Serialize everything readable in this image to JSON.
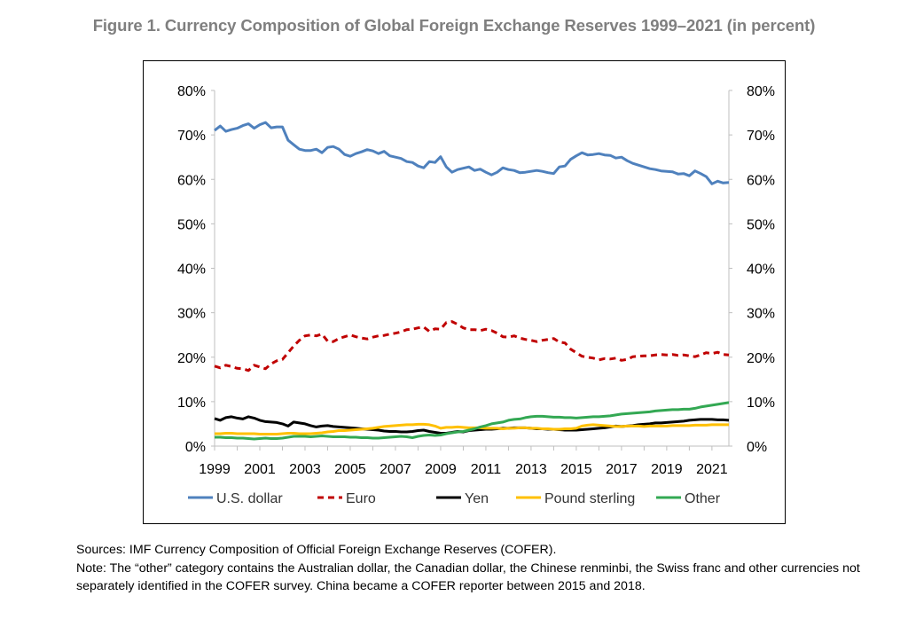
{
  "figure_title": "Figure 1. Currency Composition of Global Foreign Exchange Reserves 1999–2021 (in percent)",
  "sources": "Sources: IMF Currency Composition of Official Foreign Exchange Reserves (COFER).",
  "note": "Note: The “other” category contains the Australian dollar, the Canadian dollar, the Chinese renminbi, the Swiss franc and other currencies not separately identified in the COFER survey. China became a COFER reporter between 2015 and 2018.",
  "chart_data": {
    "type": "line",
    "title": "Figure 1. Currency Composition of Global Foreign Exchange Reserves 1999–2021 (in percent)",
    "x_start": 1999,
    "x_end": 2021.75,
    "x_ticks": [
      1999,
      2001,
      2003,
      2005,
      2007,
      2009,
      2011,
      2013,
      2015,
      2017,
      2019,
      2021
    ],
    "y_ticks": [
      0,
      10,
      20,
      30,
      40,
      50,
      60,
      70,
      80
    ],
    "ylim": [
      0,
      80
    ],
    "y_tick_format": "%",
    "dual_y_axis": true,
    "grid": false,
    "legend_position": "bottom",
    "series": [
      {
        "name": "U.S. dollar",
        "color": "#4f81bd",
        "dash": "solid",
        "x": [
          1999.0,
          1999.25,
          1999.5,
          1999.75,
          2000.0,
          2000.25,
          2000.5,
          2000.75,
          2001.0,
          2001.25,
          2001.5,
          2001.75,
          2002.0,
          2002.25,
          2002.5,
          2002.75,
          2003.0,
          2003.25,
          2003.5,
          2003.75,
          2004.0,
          2004.25,
          2004.5,
          2004.75,
          2005.0,
          2005.25,
          2005.5,
          2005.75,
          2006.0,
          2006.25,
          2006.5,
          2006.75,
          2007.0,
          2007.25,
          2007.5,
          2007.75,
          2008.0,
          2008.25,
          2008.5,
          2008.75,
          2009.0,
          2009.25,
          2009.5,
          2009.75,
          2010.0,
          2010.25,
          2010.5,
          2010.75,
          2011.0,
          2011.25,
          2011.5,
          2011.75,
          2012.0,
          2012.25,
          2012.5,
          2012.75,
          2013.0,
          2013.25,
          2013.5,
          2013.75,
          2014.0,
          2014.25,
          2014.5,
          2014.75,
          2015.0,
          2015.25,
          2015.5,
          2015.75,
          2016.0,
          2016.25,
          2016.5,
          2016.75,
          2017.0,
          2017.25,
          2017.5,
          2017.75,
          2018.0,
          2018.25,
          2018.5,
          2018.75,
          2019.0,
          2019.25,
          2019.5,
          2019.75,
          2020.0,
          2020.25,
          2020.5,
          2020.75,
          2021.0,
          2021.25,
          2021.5,
          2021.75
        ],
        "values": [
          71.0,
          72.0,
          70.8,
          71.2,
          71.5,
          72.1,
          72.5,
          71.5,
          72.3,
          72.8,
          71.6,
          71.8,
          71.8,
          68.8,
          67.8,
          66.8,
          66.5,
          66.5,
          66.8,
          66.0,
          67.2,
          67.4,
          66.8,
          65.6,
          65.2,
          65.8,
          66.2,
          66.7,
          66.4,
          65.8,
          66.3,
          65.3,
          65.0,
          64.7,
          64.0,
          63.8,
          63.0,
          62.6,
          64.0,
          63.8,
          65.1,
          62.8,
          61.6,
          62.2,
          62.5,
          62.8,
          62.0,
          62.3,
          61.6,
          61.0,
          61.6,
          62.6,
          62.2,
          62.0,
          61.5,
          61.6,
          61.8,
          62.0,
          61.8,
          61.5,
          61.3,
          62.8,
          63.0,
          64.5,
          65.3,
          66.0,
          65.5,
          65.6,
          65.8,
          65.5,
          65.4,
          64.8,
          65.0,
          64.2,
          63.6,
          63.2,
          62.8,
          62.4,
          62.2,
          61.9,
          61.8,
          61.7,
          61.2,
          61.3,
          60.8,
          61.9,
          61.3,
          60.6,
          59.0,
          59.6,
          59.2,
          59.3
        ]
      },
      {
        "name": "Euro",
        "color": "#c00000",
        "dash": "dashed",
        "x": [
          1999.0,
          1999.25,
          1999.5,
          1999.75,
          2000.0,
          2000.25,
          2000.5,
          2000.75,
          2001.0,
          2001.25,
          2001.5,
          2001.75,
          2002.0,
          2002.25,
          2002.5,
          2002.75,
          2003.0,
          2003.25,
          2003.5,
          2003.75,
          2004.0,
          2004.25,
          2004.5,
          2004.75,
          2005.0,
          2005.25,
          2005.5,
          2005.75,
          2006.0,
          2006.25,
          2006.5,
          2006.75,
          2007.0,
          2007.25,
          2007.5,
          2007.75,
          2008.0,
          2008.25,
          2008.5,
          2008.75,
          2009.0,
          2009.25,
          2009.5,
          2009.75,
          2010.0,
          2010.25,
          2010.5,
          2010.75,
          2011.0,
          2011.25,
          2011.5,
          2011.75,
          2012.0,
          2012.25,
          2012.5,
          2012.75,
          2013.0,
          2013.25,
          2013.5,
          2013.75,
          2014.0,
          2014.25,
          2014.5,
          2014.75,
          2015.0,
          2015.25,
          2015.5,
          2015.75,
          2016.0,
          2016.25,
          2016.5,
          2016.75,
          2017.0,
          2017.25,
          2017.5,
          2017.75,
          2018.0,
          2018.25,
          2018.5,
          2018.75,
          2019.0,
          2019.25,
          2019.5,
          2019.75,
          2020.0,
          2020.25,
          2020.5,
          2020.75,
          2021.0,
          2021.25,
          2021.5,
          2021.75
        ],
        "values": [
          18.0,
          17.6,
          18.2,
          17.9,
          17.5,
          17.4,
          17.0,
          18.2,
          17.8,
          17.4,
          18.5,
          19.2,
          19.5,
          21.0,
          22.5,
          23.8,
          24.8,
          25.0,
          24.8,
          25.2,
          23.6,
          23.5,
          24.2,
          24.6,
          25.0,
          24.6,
          24.3,
          24.1,
          24.5,
          24.8,
          24.9,
          25.2,
          25.4,
          25.7,
          26.2,
          26.3,
          26.6,
          26.8,
          25.8,
          26.4,
          26.3,
          27.8,
          28.0,
          27.4,
          26.6,
          26.2,
          26.2,
          26.0,
          26.3,
          26.0,
          25.4,
          24.6,
          24.5,
          24.8,
          24.3,
          24.0,
          23.8,
          23.5,
          23.8,
          24.0,
          24.2,
          23.4,
          23.2,
          21.8,
          21.0,
          20.2,
          20.0,
          19.8,
          19.4,
          19.7,
          19.6,
          19.8,
          19.3,
          19.5,
          20.1,
          20.2,
          20.3,
          20.3,
          20.5,
          20.6,
          20.5,
          20.6,
          20.4,
          20.5,
          20.3,
          20.1,
          20.5,
          21.0,
          20.8,
          21.1,
          20.6,
          20.5
        ]
      },
      {
        "name": "Yen",
        "color": "#000000",
        "dash": "solid",
        "x": [
          1999.0,
          1999.25,
          1999.5,
          1999.75,
          2000.0,
          2000.25,
          2000.5,
          2000.75,
          2001.0,
          2001.25,
          2001.5,
          2001.75,
          2002.0,
          2002.25,
          2002.5,
          2002.75,
          2003.0,
          2003.25,
          2003.5,
          2003.75,
          2004.0,
          2004.25,
          2004.5,
          2004.75,
          2005.0,
          2005.25,
          2005.5,
          2005.75,
          2006.0,
          2006.25,
          2006.5,
          2006.75,
          2007.0,
          2007.25,
          2007.5,
          2007.75,
          2008.0,
          2008.25,
          2008.5,
          2008.75,
          2009.0,
          2009.25,
          2009.5,
          2009.75,
          2010.0,
          2010.25,
          2010.5,
          2010.75,
          2011.0,
          2011.25,
          2011.5,
          2011.75,
          2012.0,
          2012.25,
          2012.5,
          2012.75,
          2013.0,
          2013.25,
          2013.5,
          2013.75,
          2014.0,
          2014.25,
          2014.5,
          2014.75,
          2015.0,
          2015.25,
          2015.5,
          2015.75,
          2016.0,
          2016.25,
          2016.5,
          2016.75,
          2017.0,
          2017.25,
          2017.5,
          2017.75,
          2018.0,
          2018.25,
          2018.5,
          2018.75,
          2019.0,
          2019.25,
          2019.5,
          2019.75,
          2020.0,
          2020.25,
          2020.5,
          2020.75,
          2021.0,
          2021.25,
          2021.5,
          2021.75
        ],
        "values": [
          6.2,
          5.8,
          6.4,
          6.6,
          6.3,
          6.1,
          6.6,
          6.3,
          5.8,
          5.5,
          5.4,
          5.3,
          5.0,
          4.5,
          5.4,
          5.2,
          5.0,
          4.6,
          4.3,
          4.5,
          4.6,
          4.4,
          4.3,
          4.2,
          4.1,
          4.0,
          3.9,
          3.8,
          3.7,
          3.6,
          3.4,
          3.3,
          3.3,
          3.2,
          3.2,
          3.3,
          3.5,
          3.6,
          3.3,
          3.1,
          2.9,
          2.9,
          3.1,
          3.3,
          3.2,
          3.5,
          3.6,
          3.7,
          3.8,
          3.8,
          3.9,
          4.0,
          4.0,
          4.1,
          4.1,
          4.1,
          4.0,
          3.9,
          3.9,
          3.8,
          3.8,
          3.7,
          3.6,
          3.6,
          3.6,
          3.7,
          3.8,
          3.9,
          4.0,
          4.1,
          4.3,
          4.5,
          4.4,
          4.5,
          4.6,
          4.8,
          4.9,
          5.0,
          5.2,
          5.2,
          5.3,
          5.4,
          5.5,
          5.6,
          5.8,
          5.9,
          6.0,
          6.0,
          6.0,
          5.9,
          5.9,
          5.8
        ]
      },
      {
        "name": "Pound sterling",
        "color": "#ffc000",
        "dash": "solid",
        "x": [
          1999.0,
          1999.25,
          1999.5,
          1999.75,
          2000.0,
          2000.25,
          2000.5,
          2000.75,
          2001.0,
          2001.25,
          2001.5,
          2001.75,
          2002.0,
          2002.25,
          2002.5,
          2002.75,
          2003.0,
          2003.25,
          2003.5,
          2003.75,
          2004.0,
          2004.25,
          2004.5,
          2004.75,
          2005.0,
          2005.25,
          2005.5,
          2005.75,
          2006.0,
          2006.25,
          2006.5,
          2006.75,
          2007.0,
          2007.25,
          2007.5,
          2007.75,
          2008.0,
          2008.25,
          2008.5,
          2008.75,
          2009.0,
          2009.25,
          2009.5,
          2009.75,
          2010.0,
          2010.25,
          2010.5,
          2010.75,
          2011.0,
          2011.25,
          2011.5,
          2011.75,
          2012.0,
          2012.25,
          2012.5,
          2012.75,
          2013.0,
          2013.25,
          2013.5,
          2013.75,
          2014.0,
          2014.25,
          2014.5,
          2014.75,
          2015.0,
          2015.25,
          2015.5,
          2015.75,
          2016.0,
          2016.25,
          2016.5,
          2016.75,
          2017.0,
          2017.25,
          2017.5,
          2017.75,
          2018.0,
          2018.25,
          2018.5,
          2018.75,
          2019.0,
          2019.25,
          2019.5,
          2019.75,
          2020.0,
          2020.25,
          2020.5,
          2020.75,
          2021.0,
          2021.25,
          2021.5,
          2021.75
        ],
        "values": [
          2.8,
          2.8,
          2.9,
          2.9,
          2.8,
          2.8,
          2.8,
          2.8,
          2.7,
          2.7,
          2.7,
          2.7,
          2.8,
          2.9,
          2.9,
          2.8,
          2.8,
          2.8,
          2.9,
          3.0,
          3.2,
          3.3,
          3.5,
          3.5,
          3.6,
          3.7,
          3.8,
          3.9,
          4.0,
          4.2,
          4.4,
          4.5,
          4.6,
          4.7,
          4.8,
          4.8,
          4.9,
          4.9,
          4.8,
          4.5,
          4.0,
          4.2,
          4.2,
          4.3,
          4.2,
          4.1,
          4.1,
          4.1,
          4.0,
          4.0,
          4.0,
          3.9,
          4.0,
          4.0,
          4.1,
          4.1,
          4.0,
          4.0,
          3.9,
          3.9,
          3.8,
          3.8,
          3.9,
          3.9,
          4.0,
          4.5,
          4.7,
          4.8,
          4.7,
          4.6,
          4.5,
          4.4,
          4.4,
          4.5,
          4.5,
          4.5,
          4.4,
          4.5,
          4.5,
          4.5,
          4.5,
          4.6,
          4.6,
          4.6,
          4.6,
          4.7,
          4.7,
          4.7,
          4.8,
          4.8,
          4.8,
          4.8
        ]
      },
      {
        "name": "Other",
        "color": "#33a853",
        "dash": "solid",
        "x": [
          1999.0,
          1999.25,
          1999.5,
          1999.75,
          2000.0,
          2000.25,
          2000.5,
          2000.75,
          2001.0,
          2001.25,
          2001.5,
          2001.75,
          2002.0,
          2002.25,
          2002.5,
          2002.75,
          2003.0,
          2003.25,
          2003.5,
          2003.75,
          2004.0,
          2004.25,
          2004.5,
          2004.75,
          2005.0,
          2005.25,
          2005.5,
          2005.75,
          2006.0,
          2006.25,
          2006.5,
          2006.75,
          2007.0,
          2007.25,
          2007.5,
          2007.75,
          2008.0,
          2008.25,
          2008.5,
          2008.75,
          2009.0,
          2009.25,
          2009.5,
          2009.75,
          2010.0,
          2010.25,
          2010.5,
          2010.75,
          2011.0,
          2011.25,
          2011.5,
          2011.75,
          2012.0,
          2012.25,
          2012.5,
          2012.75,
          2013.0,
          2013.25,
          2013.5,
          2013.75,
          2014.0,
          2014.25,
          2014.5,
          2014.75,
          2015.0,
          2015.25,
          2015.5,
          2015.75,
          2016.0,
          2016.25,
          2016.5,
          2016.75,
          2017.0,
          2017.25,
          2017.5,
          2017.75,
          2018.0,
          2018.25,
          2018.5,
          2018.75,
          2019.0,
          2019.25,
          2019.5,
          2019.75,
          2020.0,
          2020.25,
          2020.5,
          2020.75,
          2021.0,
          2021.25,
          2021.5,
          2021.75
        ],
        "values": [
          2.0,
          2.0,
          1.9,
          1.9,
          1.8,
          1.8,
          1.7,
          1.6,
          1.7,
          1.8,
          1.7,
          1.7,
          1.8,
          2.0,
          2.2,
          2.2,
          2.2,
          2.1,
          2.2,
          2.3,
          2.2,
          2.1,
          2.1,
          2.1,
          2.0,
          2.0,
          1.9,
          1.9,
          1.8,
          1.8,
          1.9,
          2.0,
          2.1,
          2.2,
          2.1,
          1.9,
          2.2,
          2.4,
          2.5,
          2.4,
          2.5,
          2.8,
          3.0,
          3.2,
          3.3,
          3.6,
          3.9,
          4.3,
          4.6,
          5.0,
          5.2,
          5.4,
          5.8,
          6.0,
          6.1,
          6.4,
          6.6,
          6.7,
          6.7,
          6.6,
          6.5,
          6.5,
          6.4,
          6.4,
          6.3,
          6.4,
          6.5,
          6.6,
          6.6,
          6.7,
          6.8,
          7.0,
          7.2,
          7.3,
          7.4,
          7.5,
          7.6,
          7.7,
          7.9,
          8.0,
          8.1,
          8.2,
          8.2,
          8.3,
          8.3,
          8.5,
          8.8,
          9.0,
          9.2,
          9.4,
          9.6,
          9.8
        ]
      }
    ]
  }
}
